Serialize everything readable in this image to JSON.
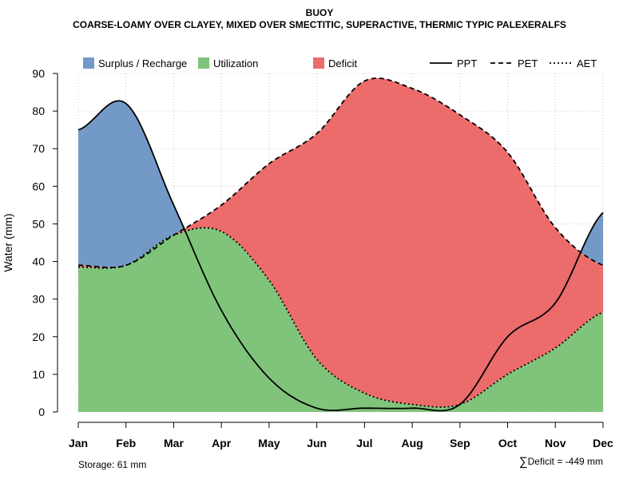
{
  "title": "BUOY",
  "subtitle": "COARSE-LOAMY OVER CLAYEY, MIXED OVER SMECTITIC, SUPERACTIVE, THERMIC TYPIC PALEXERALFS",
  "footer": {
    "storage": "Storage: 61 mm",
    "sigma": "∑",
    "deficit": "Deficit = -449 mm"
  },
  "colors": {
    "surplus": "#7399c6",
    "utilization": "#7fc47a",
    "deficit": "#ec6b6b",
    "grid": "#c8c8c8"
  },
  "chart_data": {
    "type": "area",
    "title": "BUOY",
    "subtitle": "COARSE-LOAMY OVER CLAYEY, MIXED OVER SMECTITIC, SUPERACTIVE, THERMIC TYPIC PALEXERALFS",
    "ylabel": "Water (mm)",
    "xlabel": "",
    "ylim": [
      0,
      90
    ],
    "yticks": [
      0,
      10,
      20,
      30,
      40,
      50,
      60,
      70,
      80,
      90
    ],
    "categories": [
      "Jan",
      "Feb",
      "Mar",
      "Apr",
      "May",
      "Jun",
      "Jul",
      "Aug",
      "Sep",
      "Oct",
      "Nov",
      "Dec"
    ],
    "grid": true,
    "legend": {
      "position": "top",
      "fills": [
        {
          "name": "Surplus / Recharge",
          "key": "surplus"
        },
        {
          "name": "Utilization",
          "key": "utilization"
        },
        {
          "name": "Deficit",
          "key": "deficit"
        }
      ],
      "lines": [
        {
          "name": "PPT",
          "dash": "solid"
        },
        {
          "name": "PET",
          "dash": "dashed"
        },
        {
          "name": "AET",
          "dash": "dotted"
        }
      ]
    },
    "series": [
      {
        "name": "PPT",
        "values": [
          75,
          82,
          55,
          27,
          9,
          1,
          1,
          1,
          2,
          20,
          29,
          53
        ]
      },
      {
        "name": "PET",
        "values": [
          39,
          39,
          47,
          55,
          66,
          74,
          88,
          86,
          79,
          69,
          49,
          39
        ]
      },
      {
        "name": "AET",
        "values": [
          38.5,
          39,
          47,
          48,
          35,
          14,
          5,
          2,
          2,
          10,
          17,
          26.5
        ]
      }
    ]
  }
}
